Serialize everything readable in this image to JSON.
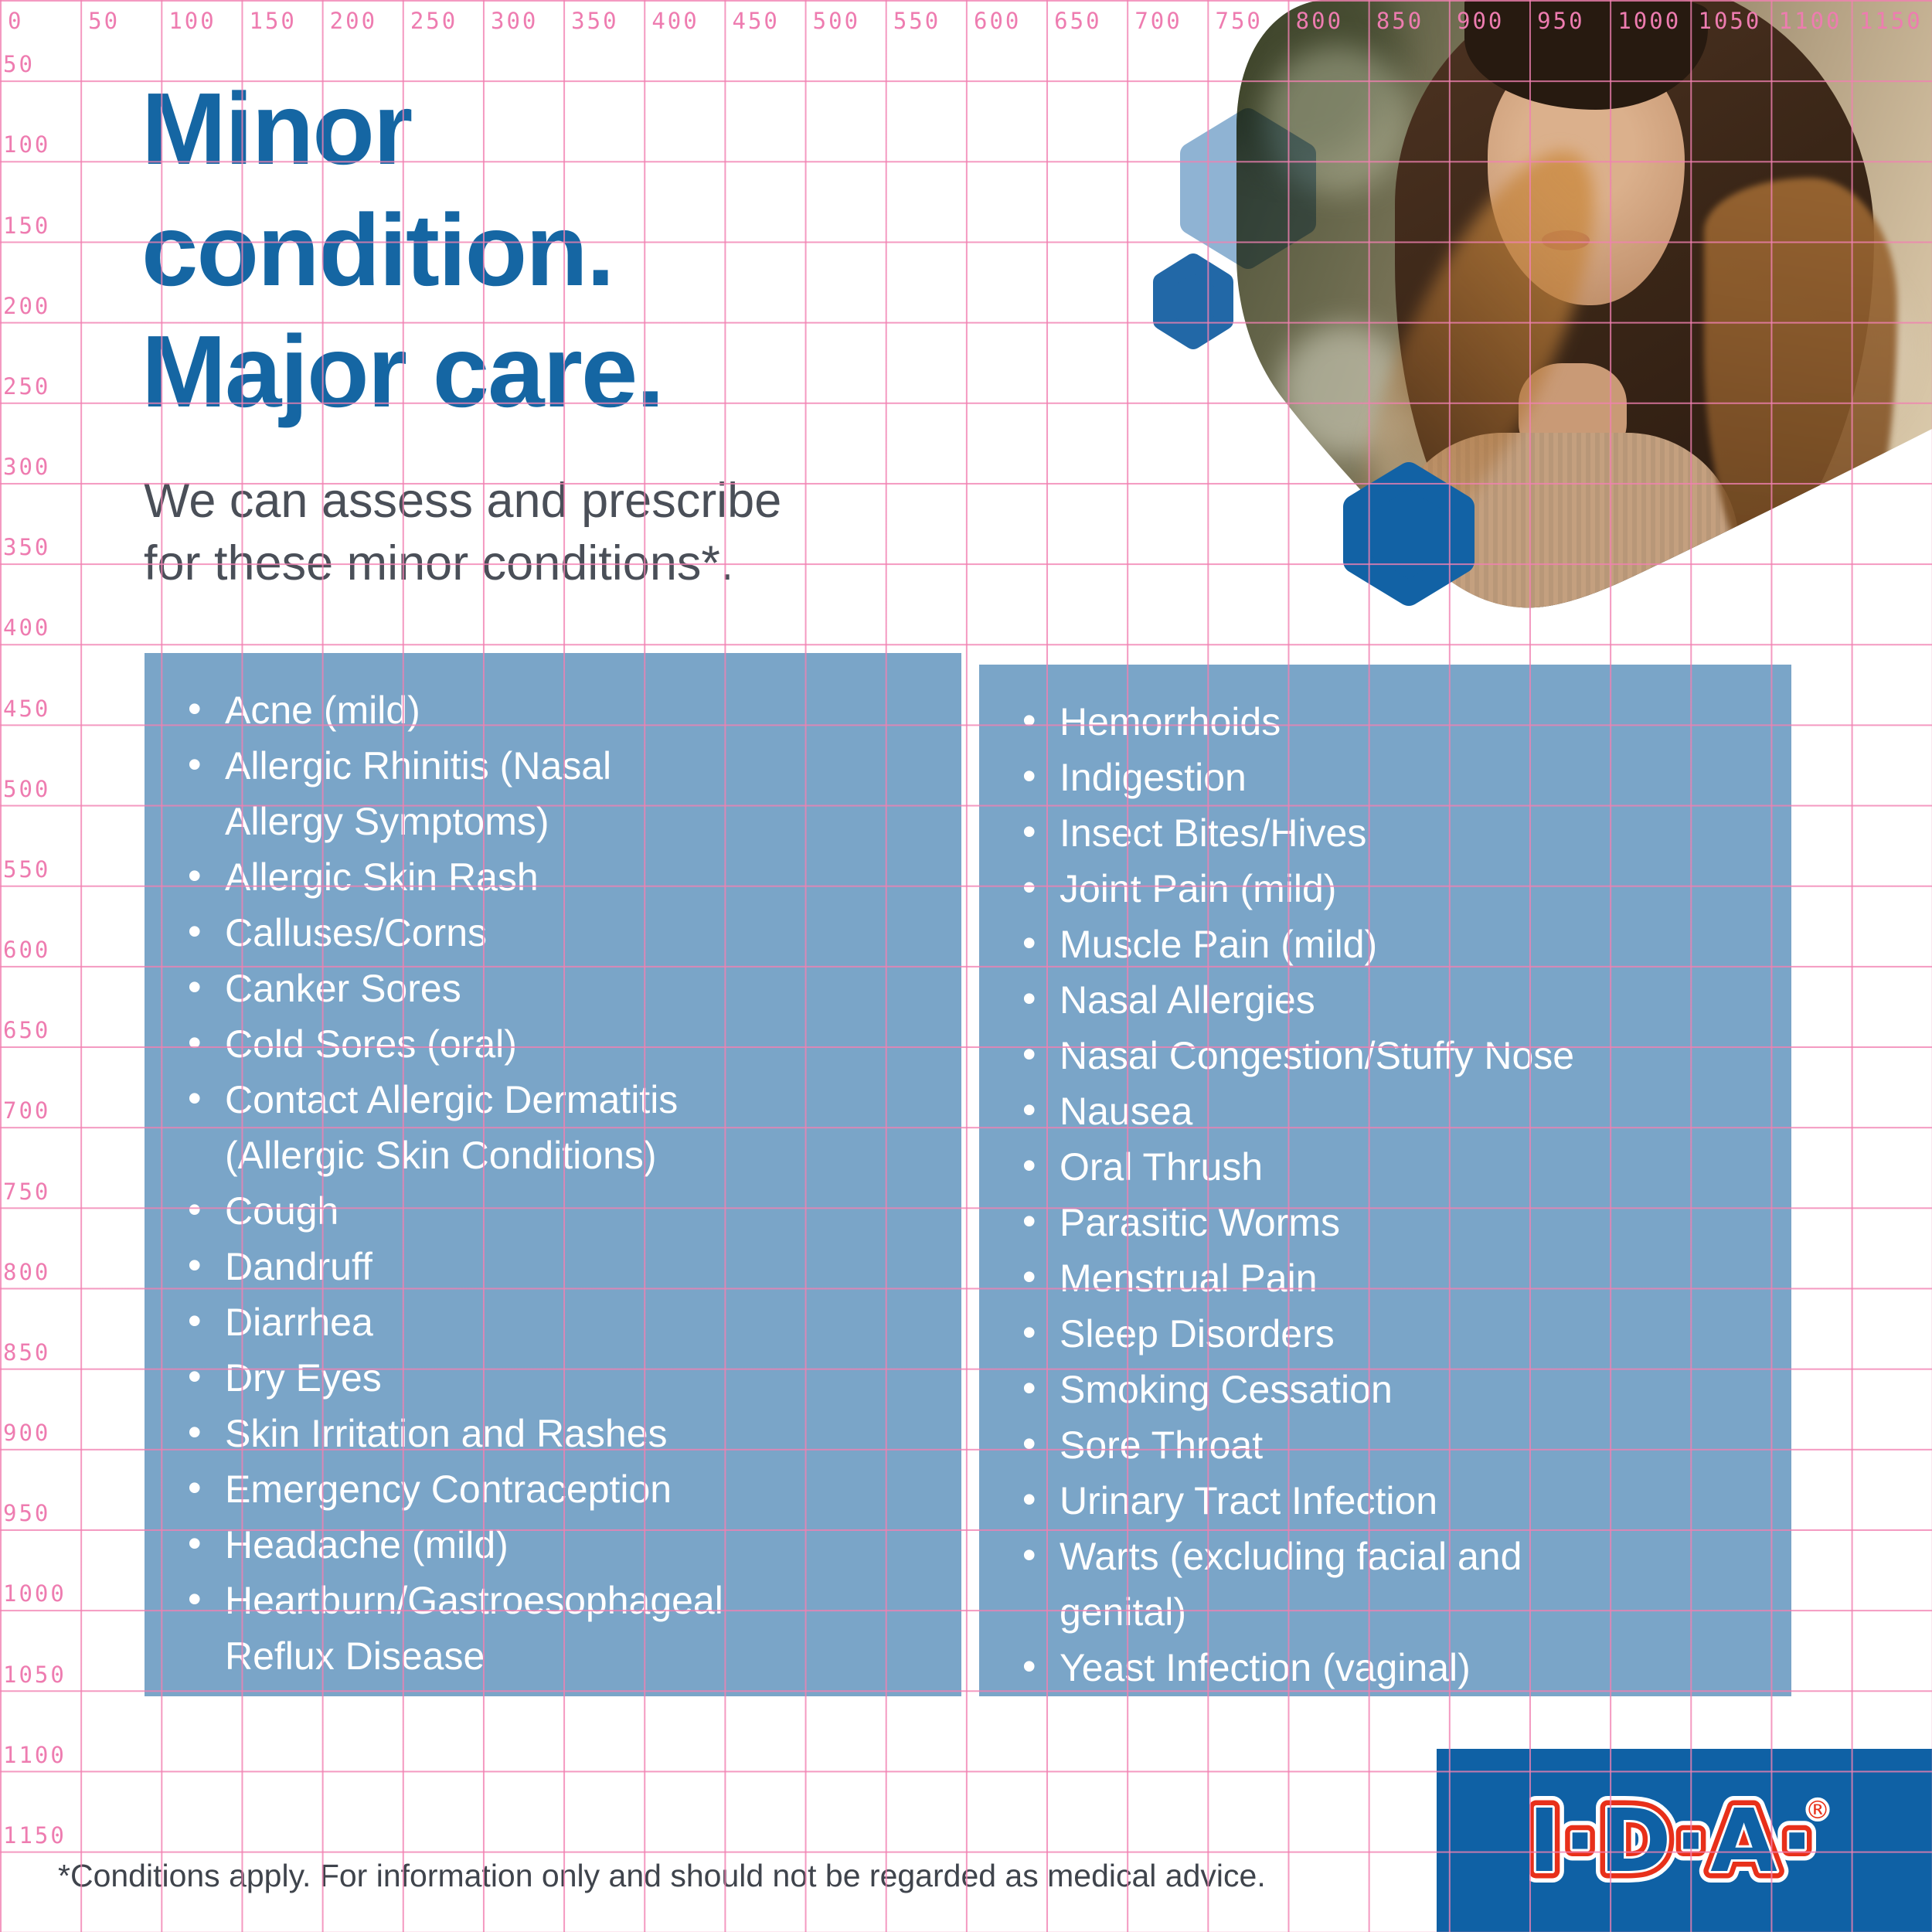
{
  "header": {
    "title_lines": [
      "Minor",
      "condition.",
      "Major care."
    ],
    "subtitle_lines": [
      "We can assess and prescribe",
      "for these minor conditions*."
    ]
  },
  "lists": {
    "left": [
      "Acne (mild)",
      "Allergic Rhinitis (Nasal\nAllergy Symptoms)",
      "Allergic Skin Rash",
      "Calluses/Corns",
      "Canker Sores",
      "Cold Sores (oral)",
      "Contact Allergic Dermatitis\n(Allergic Skin Conditions)",
      "Cough",
      "Dandruff",
      "Diarrhea",
      "Dry Eyes",
      "Skin Irritation and Rashes",
      "Emergency Contraception",
      "Headache (mild)",
      "Heartburn/Gastroesophageal\nReflux Disease"
    ],
    "right": [
      "Hemorrhoids",
      "Indigestion",
      "Insect Bites/Hives",
      "Joint Pain (mild)",
      "Muscle Pain (mild)",
      "Nasal Allergies",
      "Nasal Congestion/Stuffy Nose",
      "Nausea",
      "Oral Thrush",
      "Parasitic Worms",
      "Menstrual Pain",
      "Sleep Disorders",
      "Smoking Cessation",
      "Sore Throat",
      "Urinary Tract Infection",
      "Warts (excluding facial and\ngenital)",
      "Yeast Infection (vaginal)"
    ]
  },
  "footer": {
    "disclaimer": "*Conditions apply.  For information only and should not be regarded as medical advice."
  },
  "logo": {
    "text": "I·D·A·",
    "registered": "®"
  },
  "ruler": {
    "top_labels": [
      "0",
      "50",
      "100",
      "150",
      "200",
      "250",
      "300",
      "350",
      "400",
      "450",
      "500",
      "550",
      "600",
      "650",
      "700",
      "750",
      "800",
      "850",
      "900",
      "950",
      "1000",
      "1050",
      "1100",
      "1150"
    ],
    "left_labels": [
      "50",
      "100",
      "150",
      "200",
      "250",
      "300",
      "350",
      "400",
      "450",
      "500",
      "550",
      "600",
      "650",
      "700",
      "750",
      "800",
      "850",
      "900",
      "950",
      "1000",
      "1050",
      "1100",
      "1150"
    ]
  },
  "colors": {
    "title_blue": "#1566A3",
    "subtitle_gray": "#4A4F58",
    "box_blue": "#7AA5C8",
    "list_text": "#FFFFFF",
    "grid_pink": "#F180B1",
    "hex_light": "#8FB3D3",
    "hex_dark": "#1262A5",
    "logo_bg_blue": "#0F61A5",
    "logo_red": "#E8301A",
    "footer_gray": "#3F444C"
  }
}
